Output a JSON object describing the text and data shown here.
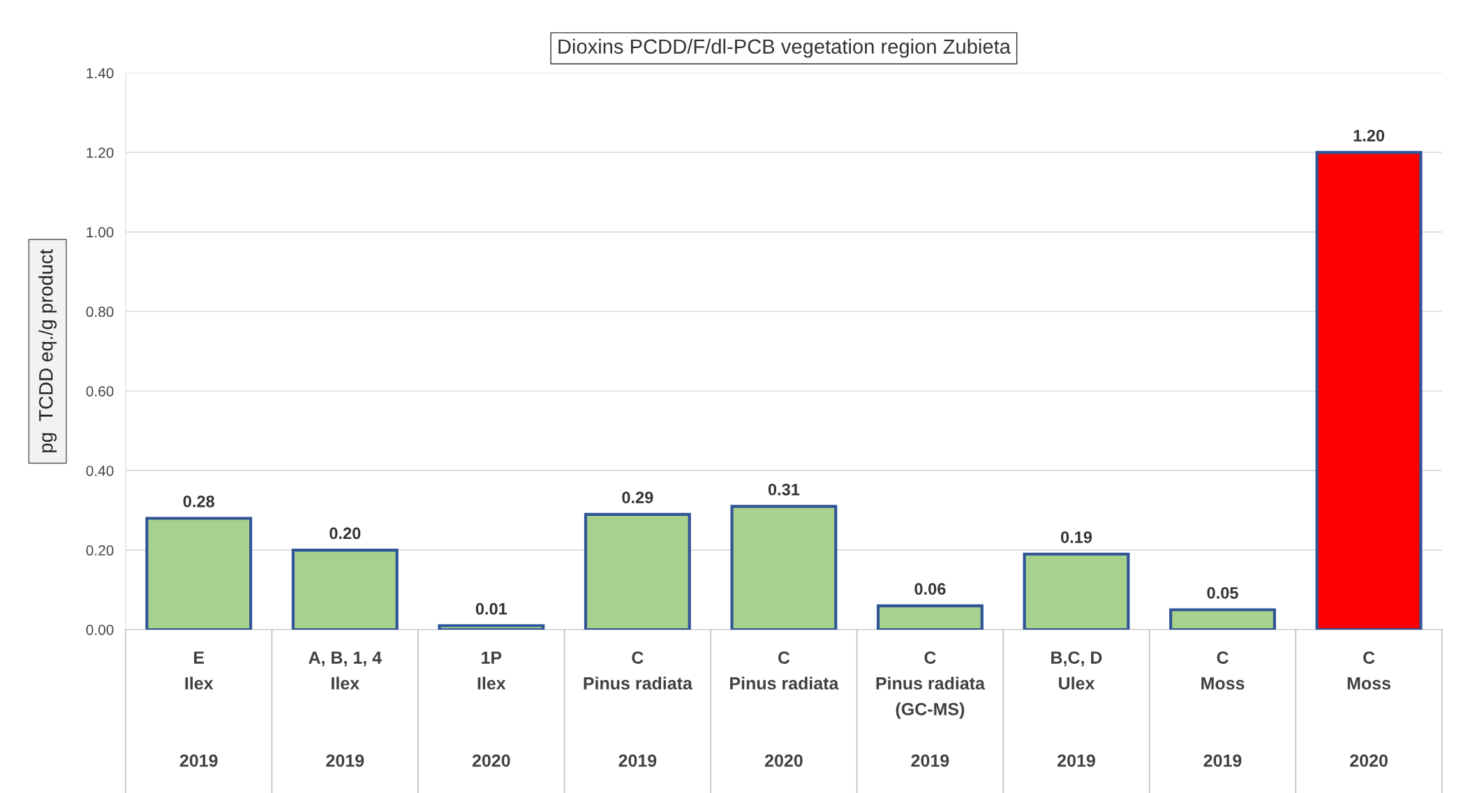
{
  "chart_data": {
    "type": "bar",
    "title": "Dioxins PCDD/F/dl-PCB vegetation region Zubieta",
    "ylabel": "pg  TCDD eq./g product",
    "categories": [
      "E\nIlex\n\n\n2019",
      "A, B, 1, 4\nIlex\n\n\n2019",
      "1P\nIlex\n\n\n2020",
      "C\nPinus radiata\n\n\n2019",
      "C\nPinus radiata\n\n\n2020",
      "C\nPinus radiata\n(GC-MS)\n\n2019",
      "B,C, D\nUlex\n\n\n2019",
      "C\nMoss\n\n\n2019",
      "C\nMoss\n\n\n2020"
    ],
    "values": [
      0.28,
      0.2,
      0.01,
      0.29,
      0.31,
      0.06,
      0.19,
      0.05,
      1.2
    ],
    "colors": [
      "#a9d18e",
      "#a9d18e",
      "#a9d18e",
      "#a9d18e",
      "#a9d18e",
      "#a9d18e",
      "#a9d18e",
      "#a9d18e",
      "#ff0000"
    ],
    "value_labels": [
      "0.28",
      "0.20",
      "0.01",
      "0.29",
      "0.31",
      "0.06",
      "0.19",
      "0.05",
      "1.20"
    ],
    "ylim": [
      0,
      1.4
    ],
    "yticks": [
      {
        "value": 0,
        "label": "0.00"
      },
      {
        "value": 0.2,
        "label": "0.20"
      },
      {
        "value": 0.4,
        "label": "0.40"
      },
      {
        "value": 0.6,
        "label": "0.60"
      },
      {
        "value": 0.8,
        "label": "0.80"
      },
      {
        "value": 1.0,
        "label": "1.00"
      },
      {
        "value": 1.2,
        "label": "1.20"
      },
      {
        "value": 1.4,
        "label": "1.40"
      }
    ],
    "grid": "y",
    "legend": false
  }
}
